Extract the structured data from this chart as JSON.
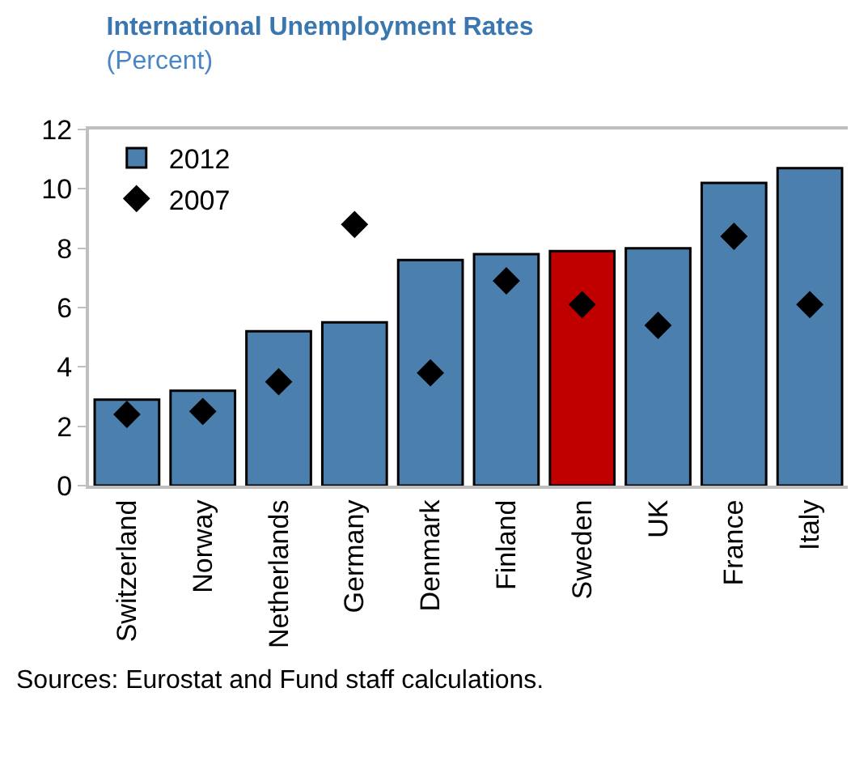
{
  "chart_data": {
    "type": "bar",
    "title": "International Unemployment Rates",
    "subtitle": "(Percent)",
    "categories": [
      "Switzerland",
      "Norway",
      "Netherlands",
      "Germany",
      "Denmark",
      "Finland",
      "Sweden",
      "UK",
      "France",
      "Italy"
    ],
    "series": [
      {
        "name": "2012",
        "colors": [
          "#4a7fae",
          "#4a7fae",
          "#4a7fae",
          "#4a7fae",
          "#4a7fae",
          "#4a7fae",
          "#c00000",
          "#4a7fae",
          "#4a7fae",
          "#4a7fae"
        ],
        "values": [
          2.9,
          3.2,
          5.2,
          5.5,
          7.6,
          7.8,
          7.9,
          8.0,
          10.2,
          10.7
        ]
      },
      {
        "name": "2007",
        "type": "scatter",
        "color": "#000000",
        "marker": "diamond",
        "values": [
          2.4,
          2.5,
          3.5,
          8.8,
          3.8,
          6.9,
          6.1,
          5.4,
          8.4,
          6.1
        ]
      }
    ],
    "ylim": [
      0,
      12
    ],
    "yticks": [
      0,
      2,
      4,
      6,
      8,
      10,
      12
    ],
    "grid": false,
    "legend": "top left",
    "annotations": [
      "Sources: Eurostat and Fund staff calculations."
    ]
  }
}
